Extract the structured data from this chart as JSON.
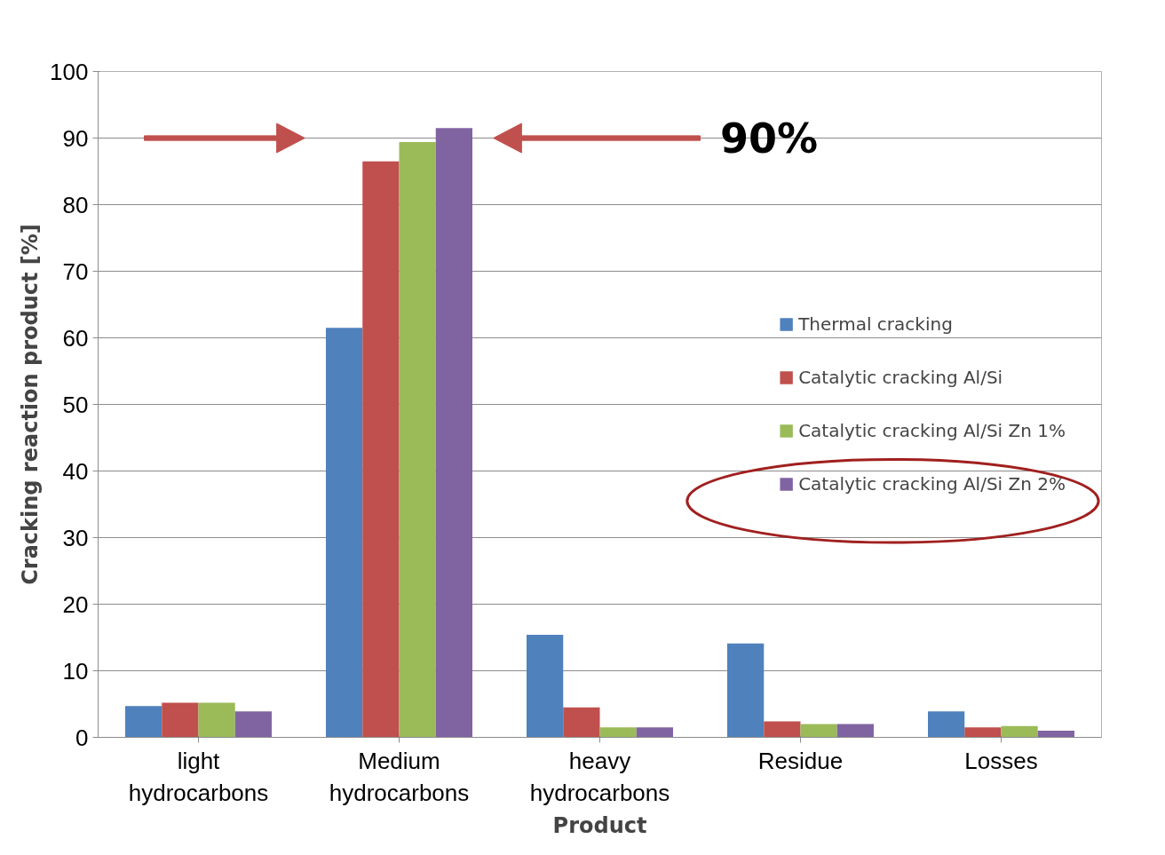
{
  "chart_data": {
    "type": "bar",
    "categories": [
      "light\nhydrocarbons",
      "Medium\nhydrocarbons",
      "heavy\nhydrocarbons",
      "Residue",
      "Losses"
    ],
    "series": [
      {
        "name": "Thermal cracking",
        "color": "#4f81bd",
        "values": [
          4.7,
          61.5,
          15.4,
          14.1,
          3.9
        ]
      },
      {
        "name": "Catalytic cracking Al/Si",
        "color": "#c0504d",
        "values": [
          5.2,
          86.5,
          4.5,
          2.4,
          1.5
        ]
      },
      {
        "name": "Catalytic cracking Al/Si Zn 1%",
        "color": "#9bbb59",
        "values": [
          5.2,
          89.4,
          1.5,
          2.0,
          1.7
        ]
      },
      {
        "name": "Catalytic cracking Al/Si Zn 2%",
        "color": "#8064a2",
        "values": [
          3.9,
          91.5,
          1.5,
          2.0,
          1.0
        ]
      }
    ],
    "xlabel": "Product",
    "ylabel": "Cracking reaction product [%]",
    "ylim": [
      0,
      100
    ],
    "yticks": [
      0,
      10,
      20,
      30,
      40,
      50,
      60,
      70,
      80,
      90,
      100
    ],
    "grid": "y",
    "legend": "right",
    "ref_lines": [
      {
        "axis": "y",
        "value": 90,
        "label": "90%",
        "color": "#c0504d"
      }
    ]
  }
}
